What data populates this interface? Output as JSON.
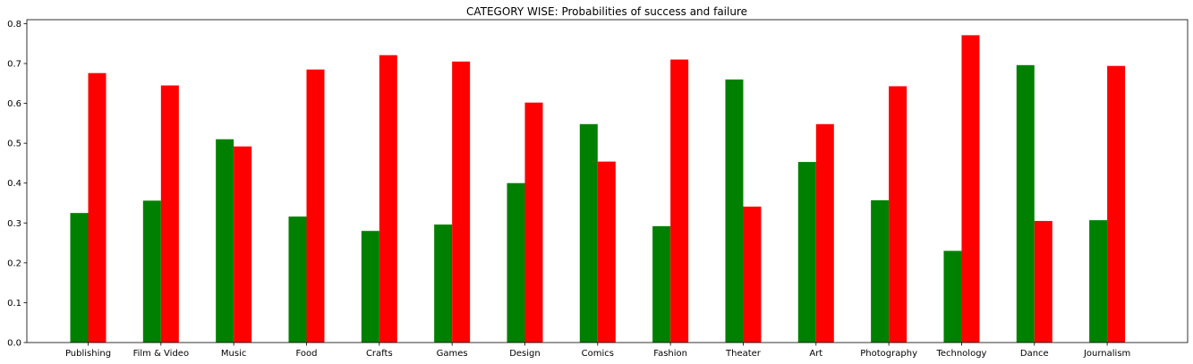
{
  "chart_data": {
    "type": "bar",
    "title": "CATEGORY WISE: Probabilities of success and failure",
    "xlabel": "",
    "ylabel": "",
    "categories": [
      "Publishing",
      "Film & Video",
      "Music",
      "Food",
      "Crafts",
      "Games",
      "Design",
      "Comics",
      "Fashion",
      "Theater",
      "Art",
      "Photography",
      "Technology",
      "Dance",
      "Journalism"
    ],
    "series": [
      {
        "color": "#008000",
        "values": [
          0.325,
          0.356,
          0.51,
          0.316,
          0.28,
          0.296,
          0.4,
          0.548,
          0.292,
          0.66,
          0.453,
          0.357,
          0.23,
          0.696,
          0.307
        ]
      },
      {
        "color": "#ff0000",
        "values": [
          0.676,
          0.645,
          0.492,
          0.685,
          0.721,
          0.705,
          0.602,
          0.454,
          0.71,
          0.341,
          0.548,
          0.643,
          0.771,
          0.305,
          0.694
        ]
      }
    ],
    "ylim": [
      0,
      0.81
    ],
    "yticks": [
      0.0,
      0.1,
      0.2,
      0.3,
      0.4,
      0.5,
      0.6,
      0.7,
      0.8
    ],
    "ytick_labels": [
      "0.0",
      "0.1",
      "0.2",
      "0.3",
      "0.4",
      "0.5",
      "0.6",
      "0.7",
      "0.8"
    ],
    "grid": false,
    "legend": "none"
  }
}
